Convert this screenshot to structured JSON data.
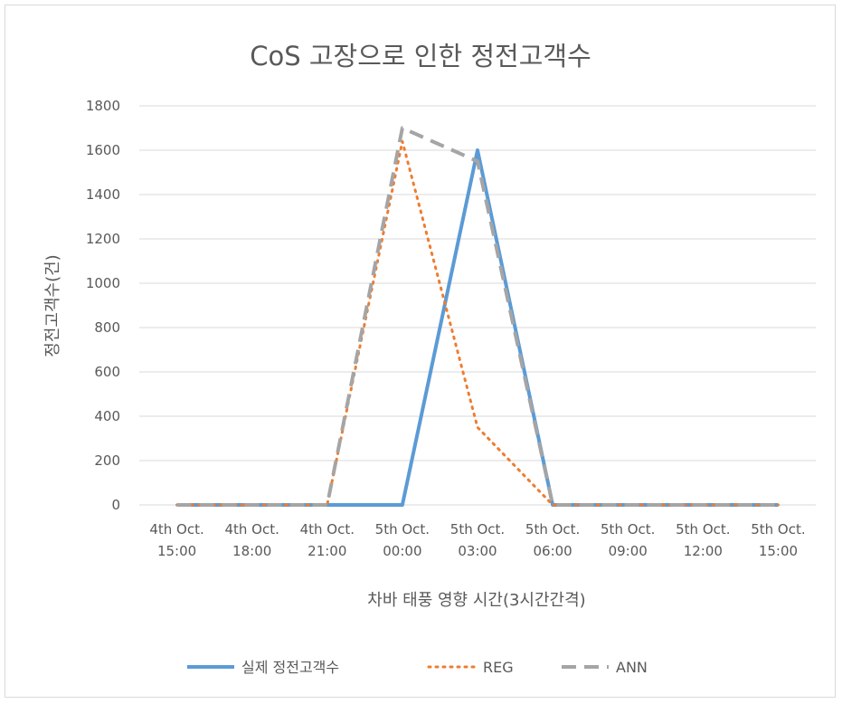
{
  "chart_data": {
    "type": "line",
    "title": "CoS 고장으로 인한 정전고객수",
    "xlabel": "차바 태풍 영향 시간(3시간간격)",
    "ylabel": "정전고객수(건)",
    "ylim": [
      0,
      1800
    ],
    "yticks": [
      "0",
      "200",
      "400",
      "600",
      "800",
      "1000",
      "1200",
      "1400",
      "1600",
      "1800"
    ],
    "grid": true,
    "legend_position": "bottom",
    "categories": [
      [
        "4th Oct.",
        "15:00"
      ],
      [
        "4th Oct.",
        "18:00"
      ],
      [
        "4th Oct.",
        "21:00"
      ],
      [
        "5th Oct.",
        "00:00"
      ],
      [
        "5th Oct.",
        "03:00"
      ],
      [
        "5th Oct.",
        "06:00"
      ],
      [
        "5th Oct.",
        "09:00"
      ],
      [
        "5th Oct.",
        "12:00"
      ],
      [
        "5th Oct.",
        "15:00"
      ]
    ],
    "series": [
      {
        "name": "실제 정전고객수",
        "color": "#5b9bd5",
        "style": "solid",
        "values": [
          0,
          0,
          0,
          0,
          1600,
          0,
          0,
          0,
          0
        ]
      },
      {
        "name": "REG",
        "color": "#ed7d31",
        "style": "dotted",
        "values": [
          0,
          0,
          0,
          1640,
          350,
          0,
          0,
          0,
          0
        ]
      },
      {
        "name": "ANN",
        "color": "#a5a5a5",
        "style": "dashed",
        "values": [
          0,
          0,
          0,
          1700,
          1550,
          0,
          0,
          0,
          0
        ]
      }
    ]
  }
}
